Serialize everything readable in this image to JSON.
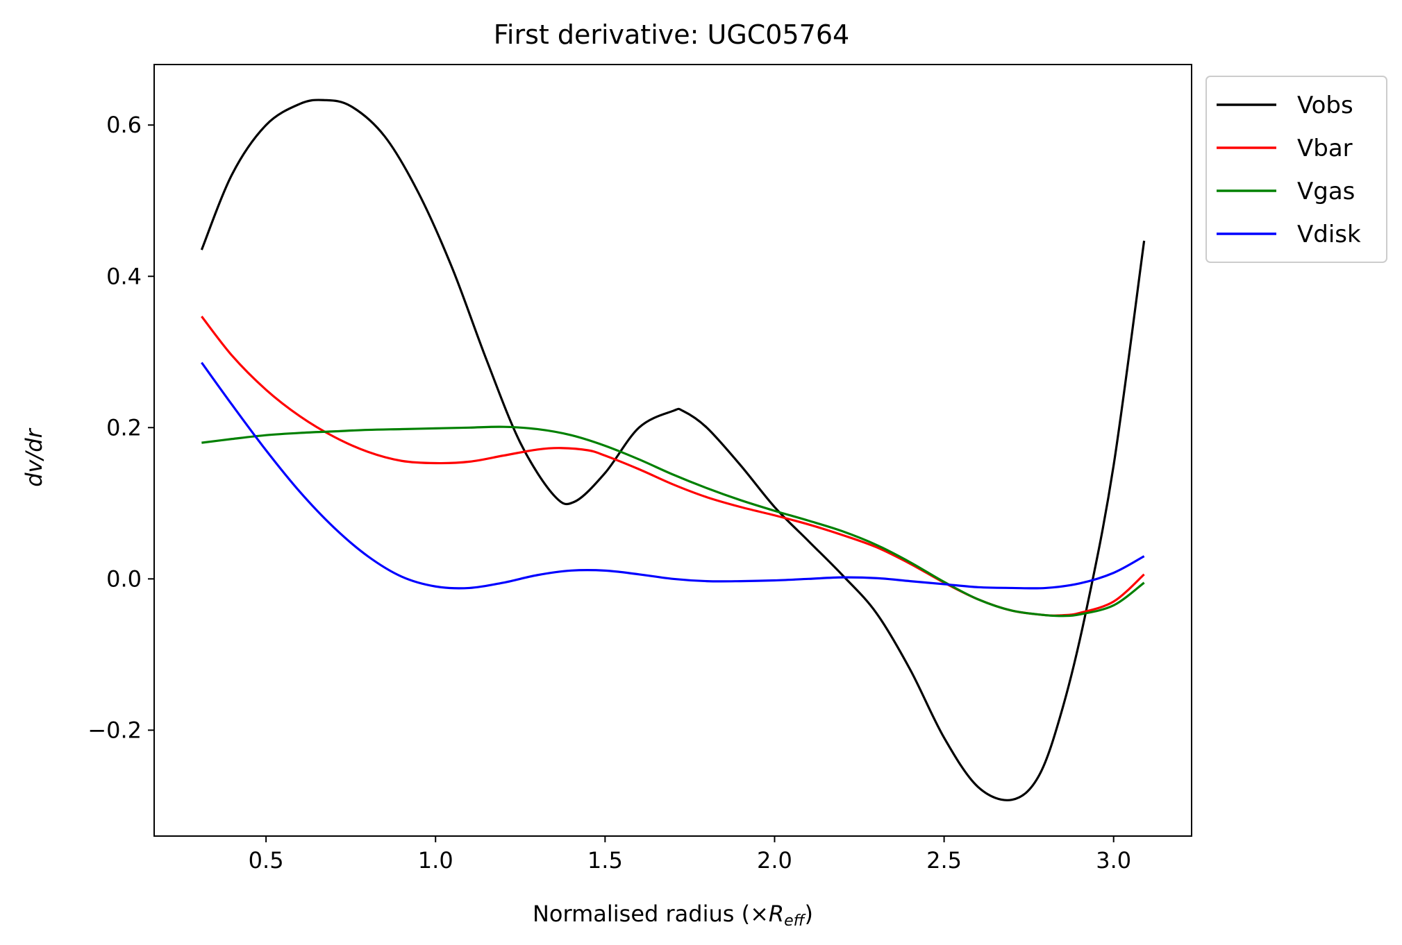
{
  "chart_data": {
    "type": "line",
    "title": "First derivative: UGC05764",
    "xlabel_prefix": "Normalised radius (×",
    "xlabel_var": "R",
    "xlabel_sub": "eff",
    "xlabel_suffix": ")",
    "ylabel": "dv/dr",
    "xlim": [
      0.17,
      3.23
    ],
    "ylim": [
      -0.34,
      0.68
    ],
    "xticks": [
      0.5,
      1.0,
      1.5,
      2.0,
      2.5,
      3.0
    ],
    "xtick_labels": [
      "0.5",
      "1.0",
      "1.5",
      "2.0",
      "2.5",
      "3.0"
    ],
    "yticks": [
      -0.2,
      0.0,
      0.2,
      0.4,
      0.6
    ],
    "ytick_labels": [
      "−0.2",
      "0.0",
      "0.2",
      "0.4",
      "0.6"
    ],
    "legend_position": "outside-top-right",
    "grid": false,
    "series": [
      {
        "name": "Vobs",
        "color": "#000000",
        "x": [
          0.31,
          0.4,
          0.5,
          0.6,
          0.67,
          0.75,
          0.85,
          0.95,
          1.05,
          1.15,
          1.25,
          1.35,
          1.41,
          1.5,
          1.6,
          1.7,
          1.73,
          1.8,
          1.9,
          2.0,
          2.1,
          2.2,
          2.3,
          2.4,
          2.5,
          2.6,
          2.7,
          2.78,
          2.85,
          2.92,
          3.0,
          3.09
        ],
        "y": [
          0.435,
          0.535,
          0.6,
          0.628,
          0.633,
          0.625,
          0.585,
          0.51,
          0.41,
          0.29,
          0.18,
          0.11,
          0.102,
          0.14,
          0.2,
          0.222,
          0.222,
          0.2,
          0.15,
          0.095,
          0.05,
          0.005,
          -0.045,
          -0.12,
          -0.21,
          -0.275,
          -0.292,
          -0.26,
          -0.17,
          -0.04,
          0.15,
          0.447
        ]
      },
      {
        "name": "Vbar",
        "color": "#ff0000",
        "x": [
          0.31,
          0.4,
          0.5,
          0.6,
          0.7,
          0.8,
          0.9,
          1.0,
          1.1,
          1.2,
          1.3,
          1.37,
          1.45,
          1.5,
          1.6,
          1.7,
          1.8,
          1.9,
          2.0,
          2.1,
          2.2,
          2.3,
          2.4,
          2.5,
          2.6,
          2.7,
          2.8,
          2.85,
          2.9,
          3.0,
          3.09
        ],
        "y": [
          0.347,
          0.295,
          0.25,
          0.215,
          0.188,
          0.168,
          0.156,
          0.153,
          0.155,
          0.163,
          0.171,
          0.173,
          0.17,
          0.163,
          0.145,
          0.125,
          0.108,
          0.095,
          0.084,
          0.072,
          0.058,
          0.042,
          0.02,
          -0.005,
          -0.027,
          -0.042,
          -0.048,
          -0.048,
          -0.045,
          -0.03,
          0.006
        ]
      },
      {
        "name": "Vgas",
        "color": "#008000",
        "x": [
          0.31,
          0.4,
          0.5,
          0.6,
          0.7,
          0.8,
          0.9,
          1.0,
          1.1,
          1.2,
          1.3,
          1.4,
          1.5,
          1.6,
          1.7,
          1.8,
          1.9,
          2.0,
          2.1,
          2.2,
          2.3,
          2.4,
          2.5,
          2.6,
          2.7,
          2.8,
          2.85,
          2.9,
          3.0,
          3.09
        ],
        "y": [
          0.18,
          0.185,
          0.19,
          0.193,
          0.195,
          0.197,
          0.198,
          0.199,
          0.2,
          0.201,
          0.198,
          0.19,
          0.176,
          0.158,
          0.138,
          0.12,
          0.104,
          0.09,
          0.077,
          0.063,
          0.045,
          0.022,
          -0.004,
          -0.027,
          -0.042,
          -0.048,
          -0.049,
          -0.047,
          -0.035,
          -0.005
        ]
      },
      {
        "name": "Vdisk",
        "color": "#0000ff",
        "x": [
          0.31,
          0.4,
          0.5,
          0.6,
          0.7,
          0.8,
          0.9,
          1.0,
          1.1,
          1.2,
          1.3,
          1.4,
          1.5,
          1.6,
          1.7,
          1.8,
          1.9,
          2.0,
          2.1,
          2.2,
          2.3,
          2.4,
          2.5,
          2.6,
          2.7,
          2.8,
          2.9,
          3.0,
          3.09
        ],
        "y": [
          0.286,
          0.23,
          0.17,
          0.115,
          0.068,
          0.03,
          0.003,
          -0.01,
          -0.012,
          -0.005,
          0.005,
          0.011,
          0.011,
          0.006,
          0.0,
          -0.003,
          -0.003,
          -0.002,
          0.0,
          0.002,
          0.001,
          -0.003,
          -0.007,
          -0.011,
          -0.012,
          -0.012,
          -0.006,
          0.008,
          0.03
        ]
      }
    ]
  }
}
